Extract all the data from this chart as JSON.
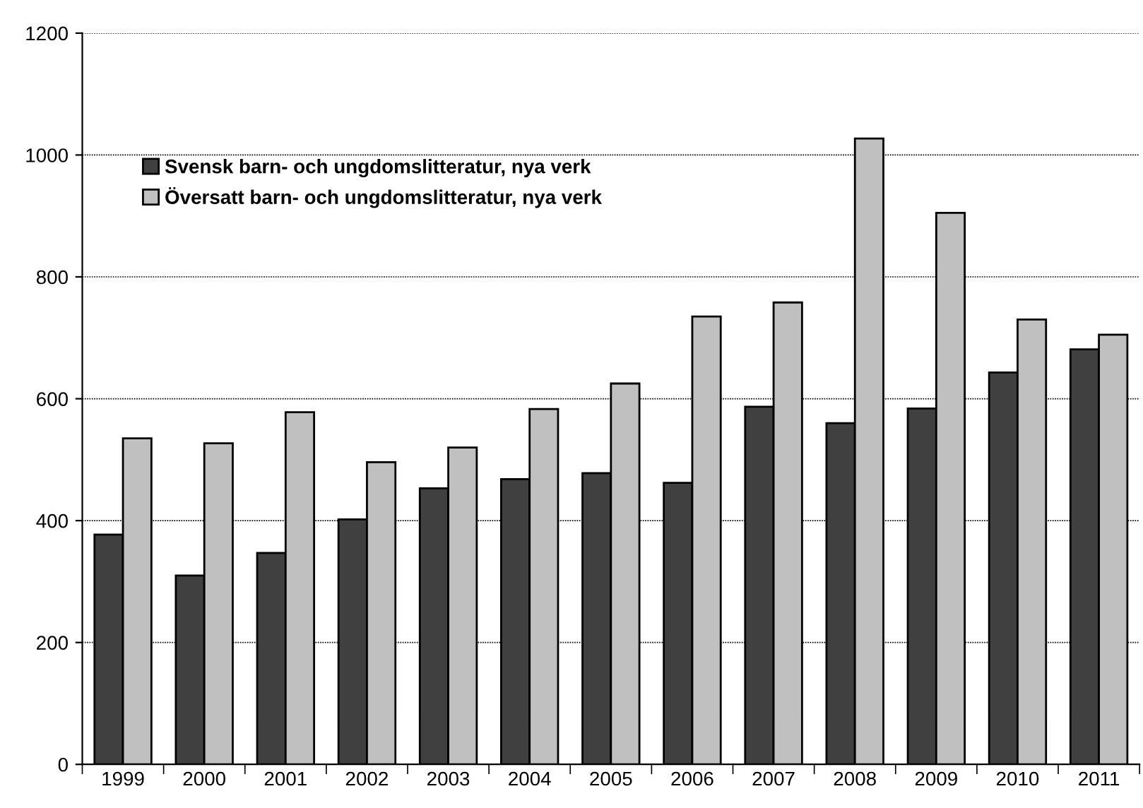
{
  "chart_data": {
    "type": "bar",
    "categories": [
      "1999",
      "2000",
      "2001",
      "2002",
      "2003",
      "2004",
      "2005",
      "2006",
      "2007",
      "2008",
      "2009",
      "2010",
      "2011"
    ],
    "series": [
      {
        "name": "Svensk barn- och ungdomslitteratur, nya verk",
        "color": "#404040",
        "values": [
          377,
          310,
          347,
          402,
          453,
          468,
          478,
          462,
          587,
          560,
          584,
          643,
          681
        ]
      },
      {
        "name": "Översatt barn- och ungdomslitteratur, nya verk",
        "color": "#c0c0c0",
        "values": [
          535,
          527,
          578,
          496,
          520,
          583,
          625,
          735,
          758,
          1027,
          905,
          730,
          705
        ]
      }
    ],
    "ylim": [
      0,
      1200
    ],
    "yticks": [
      0,
      200,
      400,
      600,
      800,
      1000,
      1200
    ],
    "grid": "y",
    "legend": "top left"
  }
}
